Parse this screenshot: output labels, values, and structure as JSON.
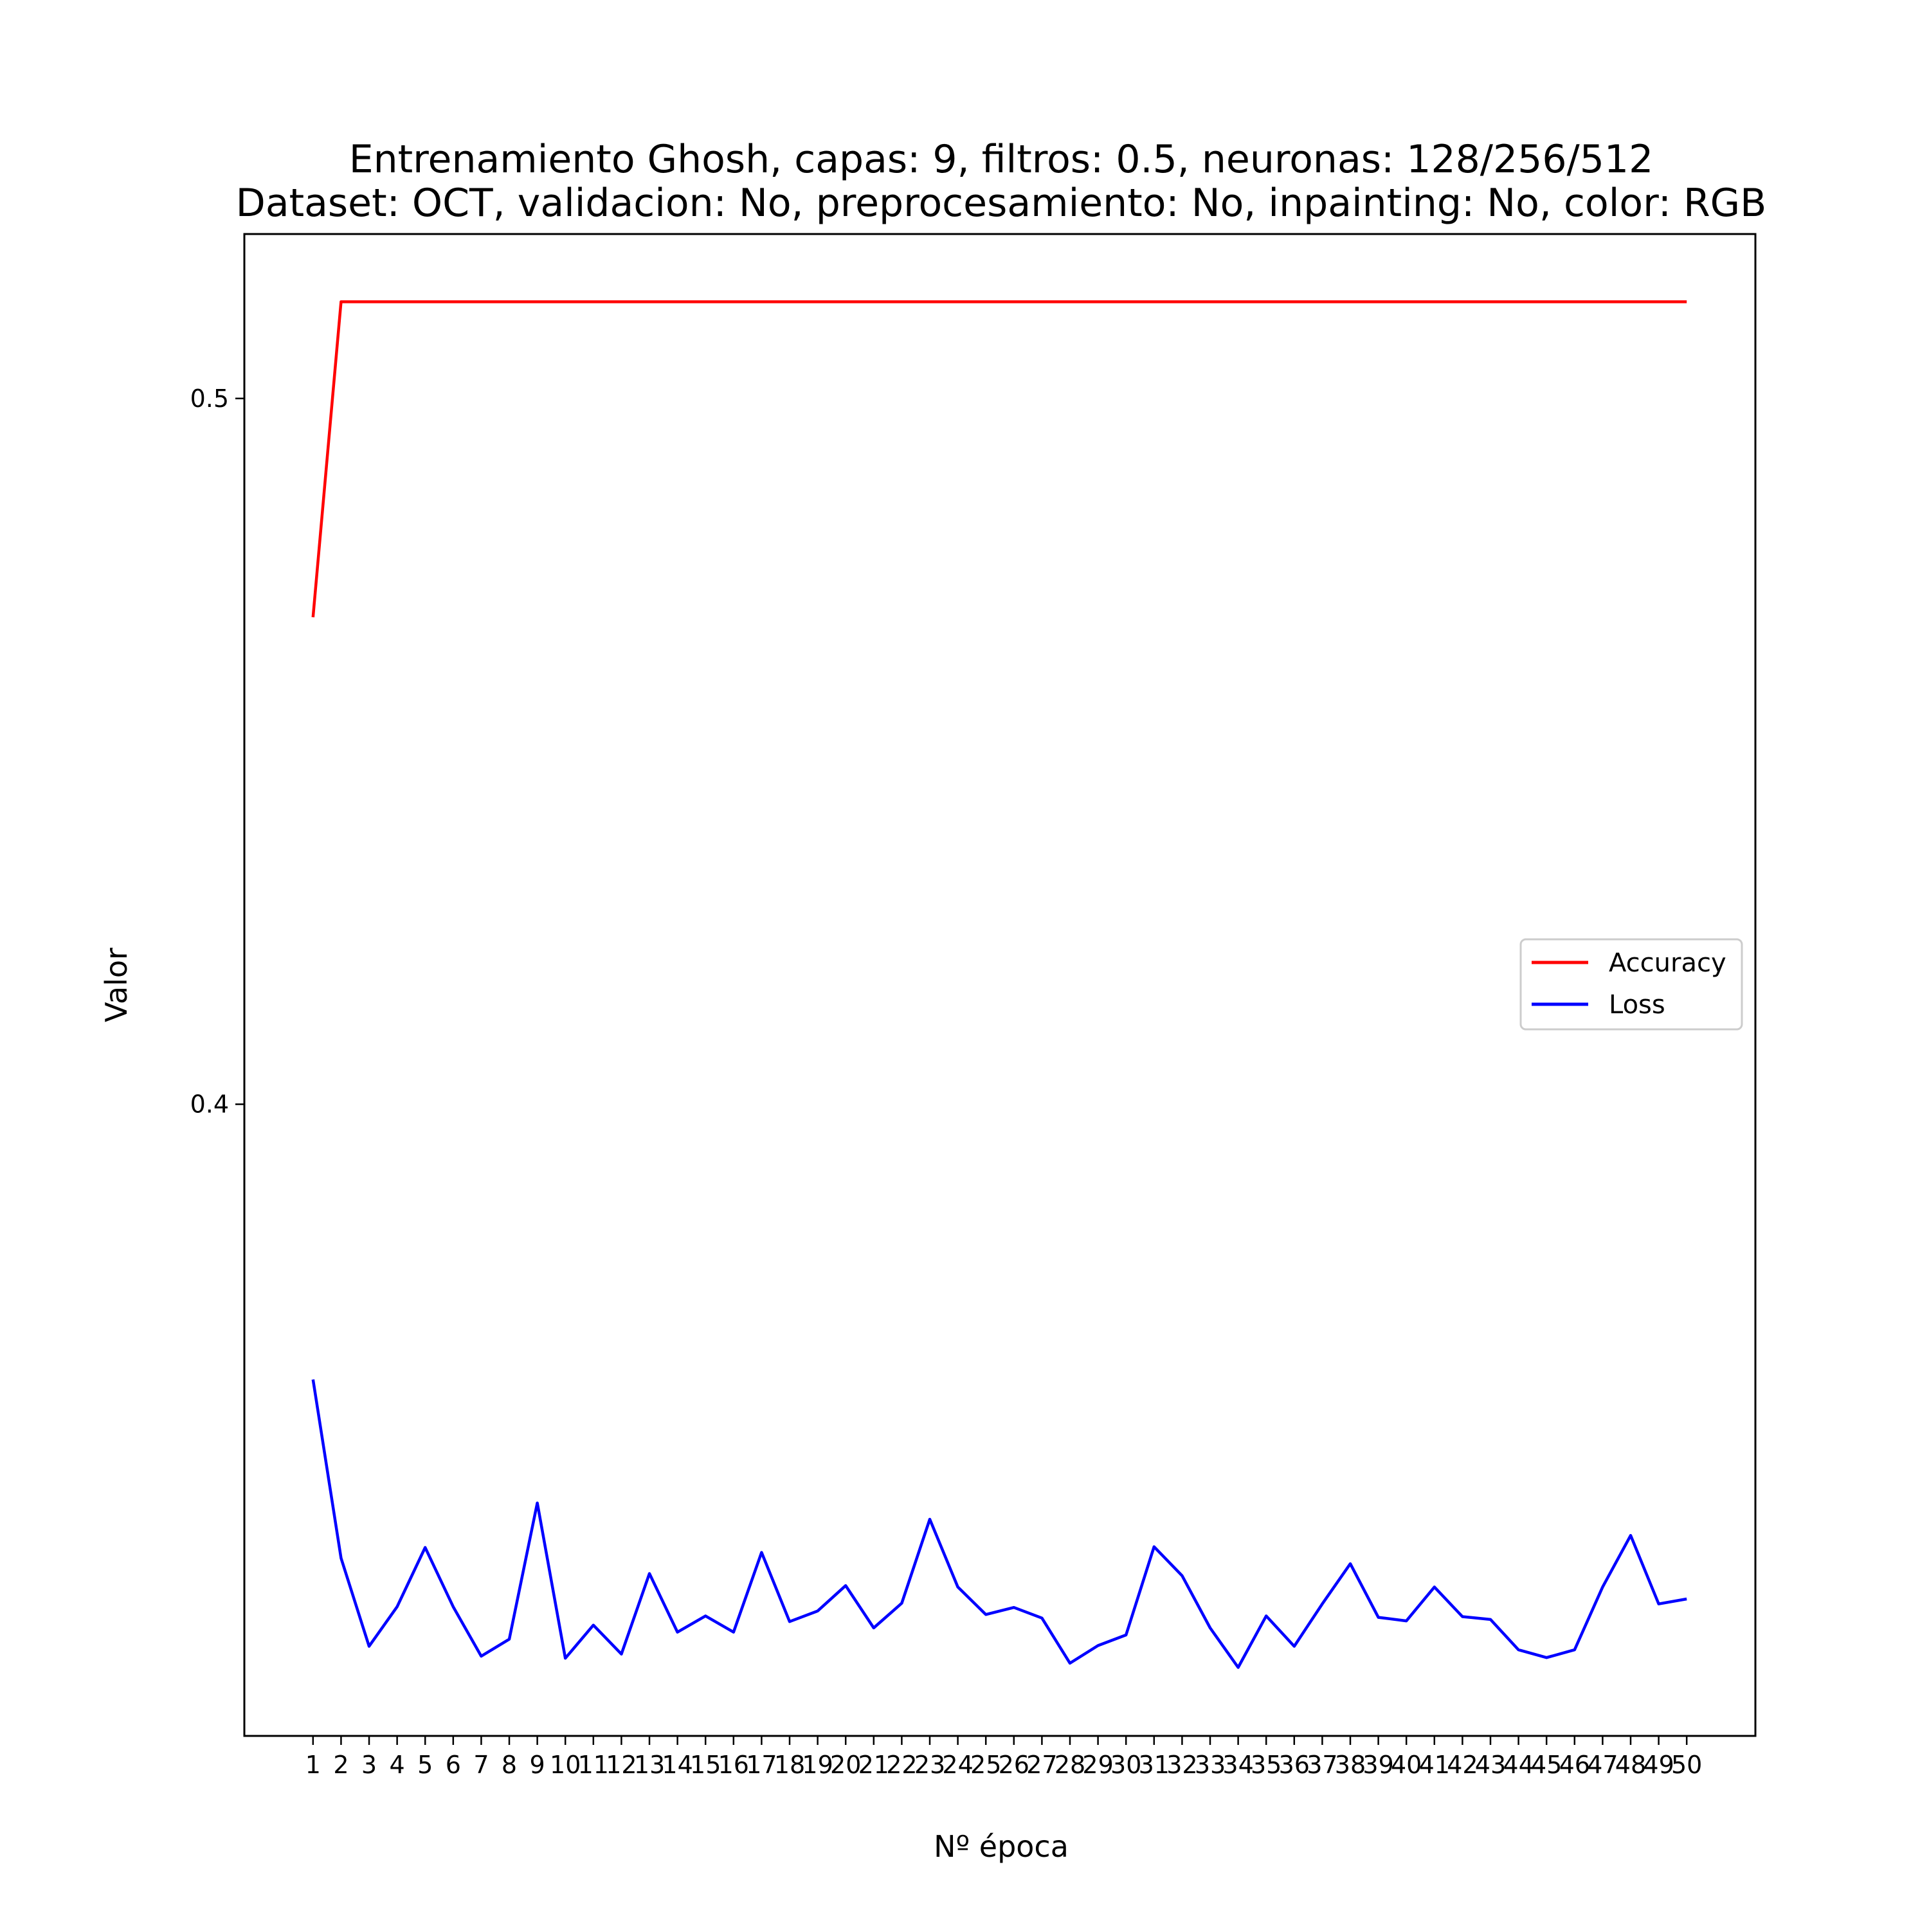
{
  "chart_data": {
    "type": "line",
    "title": "Entrenamiento Ghosh, capas: 9, filtros: 0.5, neuronas: 128/256/512",
    "subtitle": "Dataset: OCT, validacion: No, preprocesamiento: No, inpainting: No, color: RGB",
    "xlabel": "Nº época",
    "ylabel": "Valor",
    "x": [
      1,
      2,
      3,
      4,
      5,
      6,
      7,
      8,
      9,
      10,
      11,
      12,
      13,
      14,
      15,
      16,
      17,
      18,
      19,
      20,
      21,
      22,
      23,
      24,
      25,
      26,
      27,
      28,
      29,
      30,
      31,
      32,
      33,
      34,
      35,
      36,
      37,
      38,
      39,
      40,
      41,
      42,
      43,
      44,
      45,
      46,
      47,
      48,
      49,
      50
    ],
    "xticks": [
      "1",
      "2",
      "3",
      "4",
      "5",
      "6",
      "7",
      "8",
      "9",
      "10",
      "11",
      "12",
      "13",
      "14",
      "15",
      "16",
      "17",
      "18",
      "19",
      "20",
      "21",
      "22",
      "23",
      "24",
      "25",
      "26",
      "27",
      "28",
      "29",
      "30",
      "31",
      "32",
      "33",
      "34",
      "35",
      "36",
      "37",
      "38",
      "39",
      "40",
      "41",
      "42",
      "43",
      "44",
      "45",
      "46",
      "47",
      "48",
      "49",
      "50"
    ],
    "yticks": [
      0.4,
      0.5
    ],
    "ytick_labels": [
      "0.4",
      "0.5"
    ],
    "ylim": [
      0.3105,
      0.5233
    ],
    "xlim": [
      -1.45,
      52.45
    ],
    "grid": false,
    "legend_position": "center-right",
    "series": [
      {
        "name": "Accuracy",
        "color": "#ff0000",
        "values": [
          0.469,
          0.5137,
          0.5137,
          0.5137,
          0.5137,
          0.5137,
          0.5137,
          0.5137,
          0.5137,
          0.5137,
          0.5137,
          0.5137,
          0.5137,
          0.5137,
          0.5137,
          0.5137,
          0.5137,
          0.5137,
          0.5137,
          0.5137,
          0.5137,
          0.5137,
          0.5137,
          0.5137,
          0.5137,
          0.5137,
          0.5137,
          0.5137,
          0.5137,
          0.5137,
          0.5137,
          0.5137,
          0.5137,
          0.5137,
          0.5137,
          0.5137,
          0.5137,
          0.5137,
          0.5137,
          0.5137,
          0.5137,
          0.5137,
          0.5137,
          0.5137,
          0.5137,
          0.5137,
          0.5137,
          0.5137,
          0.5137,
          0.5137
        ]
      },
      {
        "name": "Loss",
        "color": "#0000ff",
        "values": [
          0.361,
          0.3357,
          0.3232,
          0.3288,
          0.3372,
          0.3288,
          0.3218,
          0.3242,
          0.3435,
          0.3215,
          0.3262,
          0.3221,
          0.3335,
          0.3252,
          0.3275,
          0.3252,
          0.3365,
          0.3267,
          0.3282,
          0.3318,
          0.3258,
          0.3293,
          0.3412,
          0.3316,
          0.3277,
          0.3287,
          0.3272,
          0.3208,
          0.3233,
          0.3248,
          0.3373,
          0.3332,
          0.3258,
          0.3202,
          0.3275,
          0.3232,
          0.3292,
          0.3349,
          0.3273,
          0.3268,
          0.3316,
          0.3274,
          0.327,
          0.3227,
          0.3216,
          0.3227,
          0.3316,
          0.3389,
          0.3292,
          0.3299
        ]
      }
    ]
  }
}
